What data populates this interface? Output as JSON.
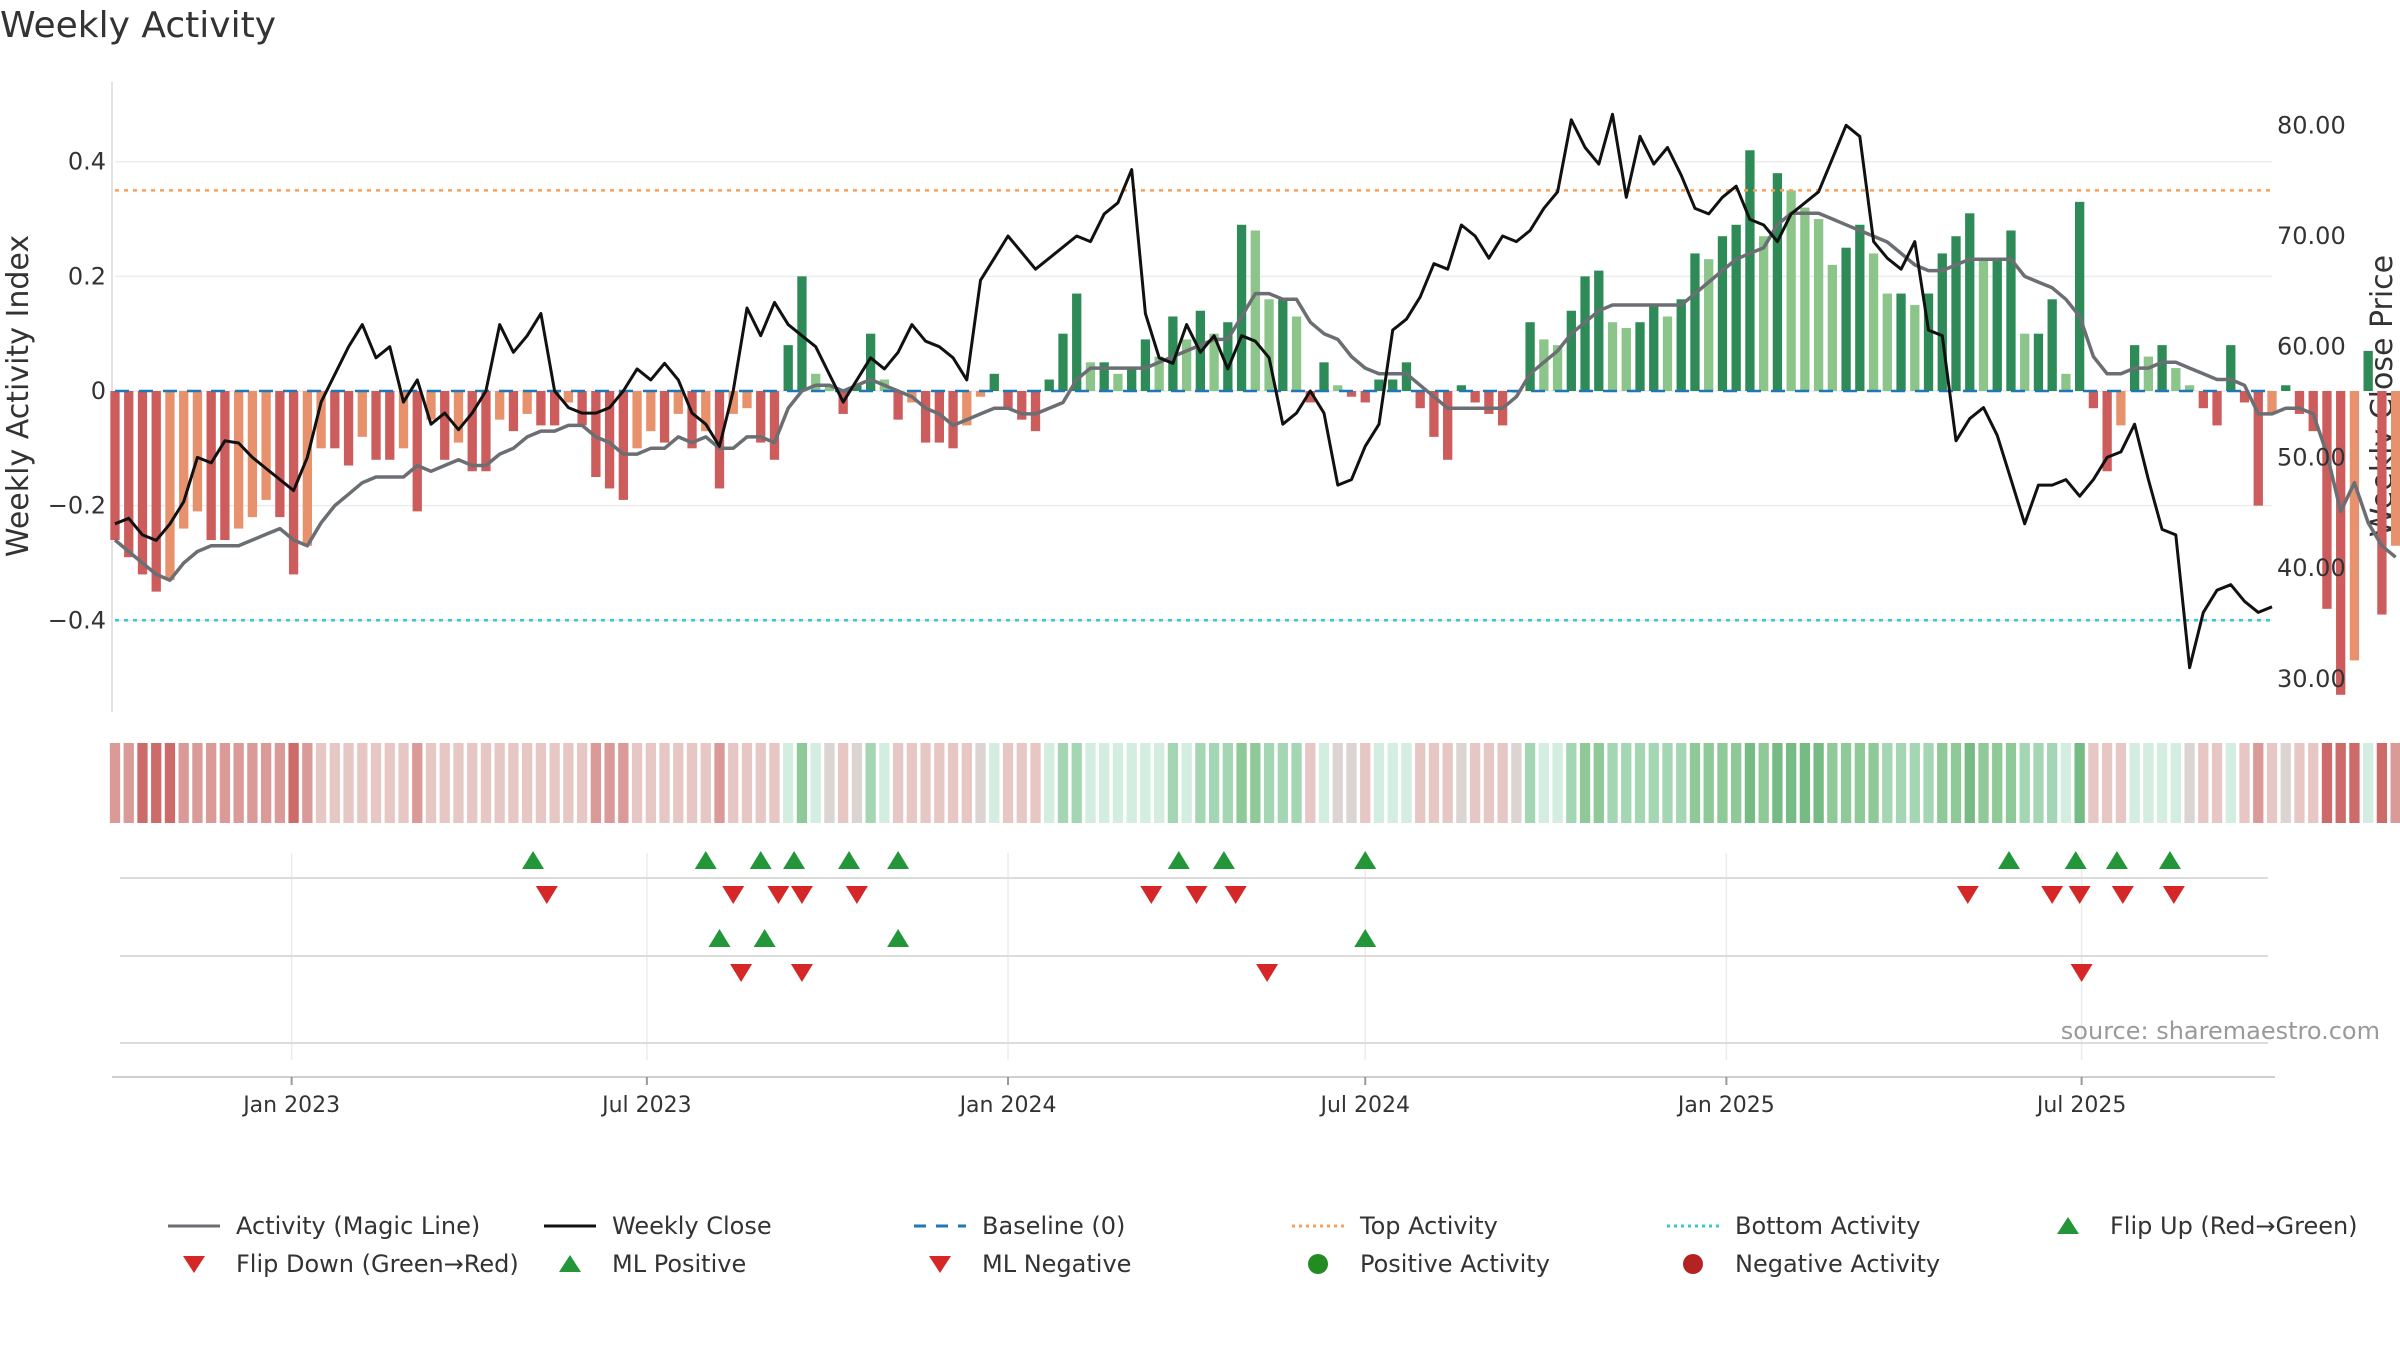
{
  "chart_data": {
    "type": "bar+line",
    "title": "Weekly Activity",
    "ylabel_left": "Weekly Activity Index",
    "ylabel_right": "Weekly Close Price",
    "source": "source: sharemaestro.com",
    "x_range": [
      "2022-10-03",
      "2025-10-06"
    ],
    "x_ticks": [
      {
        "label": "Jan 2023",
        "date": "2023-01-01"
      },
      {
        "label": "Jul 2023",
        "date": "2023-07-01"
      },
      {
        "label": "Jan 2024",
        "date": "2024-01-01"
      },
      {
        "label": "Jul 2024",
        "date": "2024-07-01"
      },
      {
        "label": "Jan 2025",
        "date": "2025-01-01"
      },
      {
        "label": "Jul 2025",
        "date": "2025-07-01"
      }
    ],
    "ylim_left": [
      -0.56,
      0.56
    ],
    "ylim_right": [
      27,
      85
    ],
    "yticks_left": [
      {
        "value": 0.4,
        "label": "0.4"
      },
      {
        "value": 0.2,
        "label": "0.2"
      },
      {
        "value": 0,
        "label": "0"
      },
      {
        "value": -0.2,
        "label": "−0.2"
      },
      {
        "value": -0.4,
        "label": "−0.4"
      }
    ],
    "yticks_right": [
      {
        "value": 80,
        "label": "80.00"
      },
      {
        "value": 70,
        "label": "70.00"
      },
      {
        "value": 60,
        "label": "60.00"
      },
      {
        "value": 50,
        "label": "50.00"
      },
      {
        "value": 40,
        "label": "40.00"
      },
      {
        "value": 30,
        "label": "30.00"
      }
    ],
    "top_activity": 0.35,
    "bottom_activity": -0.4,
    "baseline": 0,
    "start_date": "2022-10-03",
    "week_step_days": 7,
    "activity_values": [
      -0.26,
      -0.29,
      -0.32,
      -0.35,
      -0.33,
      -0.24,
      -0.21,
      -0.26,
      -0.26,
      -0.24,
      -0.22,
      -0.19,
      -0.22,
      -0.32,
      -0.27,
      -0.1,
      -0.1,
      -0.13,
      -0.08,
      -0.12,
      -0.12,
      -0.1,
      -0.21,
      -0.05,
      -0.12,
      -0.09,
      -0.14,
      -0.14,
      -0.05,
      -0.07,
      -0.04,
      -0.06,
      -0.06,
      -0.02,
      -0.06,
      -0.15,
      -0.17,
      -0.19,
      -0.1,
      -0.07,
      -0.09,
      -0.04,
      -0.1,
      -0.07,
      -0.17,
      -0.04,
      -0.03,
      -0.09,
      -0.12,
      0.08,
      0.2,
      0.03,
      0.01,
      -0.04,
      0.01,
      0.1,
      0.02,
      -0.05,
      -0.02,
      -0.09,
      -0.09,
      -0.1,
      -0.06,
      -0.01,
      0.03,
      -0.03,
      -0.05,
      -0.07,
      0.02,
      0.1,
      0.17,
      0.05,
      0.05,
      0.03,
      0.04,
      0.09,
      0.06,
      0.13,
      0.09,
      0.14,
      0.1,
      0.12,
      0.29,
      0.28,
      0.16,
      0.16,
      0.13,
      -0.02,
      0.05,
      0.01,
      -0.01,
      -0.02,
      0.02,
      0.02,
      0.05,
      -0.03,
      -0.08,
      -0.12,
      0.01,
      -0.02,
      -0.04,
      -0.06,
      0,
      0.12,
      0.09,
      0.08,
      0.14,
      0.2,
      0.21,
      0.12,
      0.11,
      0.12,
      0.15,
      0.13,
      0.16,
      0.24,
      0.23,
      0.27,
      0.29,
      0.42,
      0.27,
      0.38,
      0.35,
      0.32,
      0.3,
      0.22,
      0.25,
      0.29,
      0.24,
      0.17,
      0.17,
      0.15,
      0.17,
      0.24,
      0.27,
      0.31,
      0.23,
      0.23,
      0.28,
      0.1,
      0.1,
      0.16,
      0.03,
      0.33,
      -0.03,
      -0.14,
      -0.06,
      0.08,
      0.06,
      0.08,
      0.04,
      0.01,
      -0.03,
      -0.06,
      0.08,
      -0.02,
      -0.2,
      -0.04,
      0.01,
      -0.04,
      -0.07,
      -0.38,
      -0.53,
      -0.47,
      0.07,
      -0.39,
      -0.27
    ],
    "magic_line": [
      -0.26,
      -0.28,
      -0.3,
      -0.32,
      -0.33,
      -0.3,
      -0.28,
      -0.27,
      -0.27,
      -0.27,
      -0.26,
      -0.25,
      -0.24,
      -0.26,
      -0.27,
      -0.23,
      -0.2,
      -0.18,
      -0.16,
      -0.15,
      -0.15,
      -0.15,
      -0.13,
      -0.14,
      -0.13,
      -0.12,
      -0.13,
      -0.13,
      -0.11,
      -0.1,
      -0.08,
      -0.07,
      -0.07,
      -0.06,
      -0.06,
      -0.08,
      -0.09,
      -0.11,
      -0.11,
      -0.1,
      -0.1,
      -0.08,
      -0.09,
      -0.08,
      -0.1,
      -0.1,
      -0.08,
      -0.08,
      -0.09,
      -0.03,
      0,
      0.01,
      0.01,
      0,
      0.01,
      0.02,
      0.01,
      0,
      -0.01,
      -0.03,
      -0.04,
      -0.06,
      -0.05,
      -0.04,
      -0.03,
      -0.03,
      -0.04,
      -0.04,
      -0.03,
      -0.02,
      0.02,
      0.04,
      0.04,
      0.04,
      0.04,
      0.04,
      0.05,
      0.06,
      0.07,
      0.08,
      0.09,
      0.09,
      0.13,
      0.17,
      0.17,
      0.16,
      0.16,
      0.12,
      0.1,
      0.09,
      0.06,
      0.04,
      0.03,
      0.03,
      0.03,
      0.01,
      -0.01,
      -0.03,
      -0.03,
      -0.03,
      -0.03,
      -0.03,
      -0.01,
      0.03,
      0.05,
      0.07,
      0.1,
      0.12,
      0.14,
      0.15,
      0.15,
      0.15,
      0.15,
      0.15,
      0.15,
      0.17,
      0.19,
      0.21,
      0.23,
      0.24,
      0.25,
      0.29,
      0.31,
      0.31,
      0.31,
      0.3,
      0.29,
      0.28,
      0.27,
      0.26,
      0.24,
      0.22,
      0.21,
      0.21,
      0.22,
      0.23,
      0.23,
      0.23,
      0.23,
      0.2,
      0.19,
      0.18,
      0.16,
      0.13,
      0.06,
      0.03,
      0.03,
      0.04,
      0.04,
      0.05,
      0.05,
      0.04,
      0.03,
      0.02,
      0.02,
      0.01,
      -0.04,
      -0.04,
      -0.03,
      -0.03,
      -0.04,
      -0.11,
      -0.21,
      -0.16,
      -0.23,
      -0.27,
      -0.29
    ],
    "weekly_close": [
      44,
      44.5,
      43,
      42.5,
      44,
      46,
      50,
      49.5,
      51.5,
      51.3,
      50,
      49,
      48,
      47,
      50,
      55,
      57.5,
      60,
      62,
      59,
      60,
      55,
      57,
      53,
      54,
      52.5,
      54,
      56,
      62,
      59.5,
      61,
      63,
      56,
      54.5,
      54,
      54,
      54.5,
      56,
      58,
      57,
      58.5,
      57,
      54,
      53,
      51,
      56,
      63.5,
      61,
      64,
      62,
      61,
      60,
      57.5,
      55,
      57,
      59,
      58,
      59.5,
      62,
      60.5,
      60,
      59,
      57,
      66,
      68,
      70,
      68.5,
      67,
      68,
      69,
      70,
      69.5,
      72,
      73,
      76,
      63,
      59,
      58.5,
      62,
      59.5,
      61,
      58,
      61,
      60.5,
      59,
      53,
      54,
      56,
      54,
      47.5,
      48,
      51,
      53,
      61.5,
      62.5,
      64.5,
      67.5,
      67,
      71,
      70,
      68,
      70,
      69.5,
      70.5,
      72.5,
      74,
      80.5,
      78,
      76.5,
      81,
      73.5,
      79,
      76.5,
      78,
      75.5,
      72.5,
      72,
      73.5,
      74.5,
      71.5,
      71,
      69.5,
      72,
      73,
      74,
      77,
      80,
      79,
      69.5,
      68,
      67,
      69.5,
      61.5,
      61,
      51.5,
      53.5,
      54.5,
      52,
      48,
      44,
      47.5,
      47.5,
      48,
      46.5,
      48,
      50,
      50.5,
      53,
      48,
      43.5,
      43,
      31,
      36,
      38,
      38.5,
      37,
      36,
      36.5
    ],
    "cell_colors": [
      "#d99a98",
      "#e7c7c4",
      "#dcd4d0",
      "#d3ede0",
      "#a4d6b4",
      "#8ec997",
      "#76ba84",
      "#cd6b6a",
      "#57a56a"
    ],
    "signals": {
      "flip_up": [
        "2023-05-04",
        "2023-07-31",
        "2023-08-28",
        "2023-09-14",
        "2023-10-12",
        "2023-11-06",
        "2024-03-28",
        "2024-04-20",
        "2024-07-01",
        "2025-05-25",
        "2025-06-28",
        "2025-07-19",
        "2025-08-15"
      ],
      "flip_down": [
        "2023-05-11",
        "2023-08-14",
        "2023-09-06",
        "2023-09-18",
        "2023-10-16",
        "2024-03-14",
        "2024-04-06",
        "2024-04-26",
        "2025-05-04",
        "2025-06-16",
        "2025-06-30",
        "2025-07-22",
        "2025-08-17"
      ],
      "ml_positive": [
        "2023-08-07",
        "2023-08-30",
        "2023-11-06",
        "2024-07-01"
      ],
      "ml_negative": [
        "2023-08-18",
        "2023-09-18",
        "2024-05-12",
        "2025-07-01"
      ]
    },
    "legend": [
      {
        "label": "Activity (Magic Line)",
        "kind": "line",
        "color": "#6b6f73",
        "dash": "none"
      },
      {
        "label": "Weekly Close",
        "kind": "line",
        "color": "#111111",
        "dash": "none"
      },
      {
        "label": "Baseline (0)",
        "kind": "line",
        "color": "#1f77b4",
        "dash": "dashed"
      },
      {
        "label": "Top Activity",
        "kind": "line",
        "color": "#f5a15c",
        "dash": "dotted"
      },
      {
        "label": "Bottom Activity",
        "kind": "line",
        "color": "#38c7cf",
        "dash": "dotted"
      },
      {
        "label": "Flip Up (Red→Green)",
        "kind": "triangle-up",
        "color": "#23963a"
      },
      {
        "label": "Flip Down (Green→Red)",
        "kind": "triangle-down",
        "color": "#d62728"
      },
      {
        "label": "ML Positive",
        "kind": "triangle-up",
        "color": "#23963a"
      },
      {
        "label": "ML Negative",
        "kind": "triangle-down",
        "color": "#d62728"
      },
      {
        "label": "Positive Activity",
        "kind": "circle",
        "color": "#238b22"
      },
      {
        "label": "Negative Activity",
        "kind": "circle",
        "color": "#b52222"
      }
    ],
    "colors": {
      "pos_strong": "#2e8b57",
      "pos_light": "#8cc58a",
      "neg_strong": "#cd5c5c",
      "neg_light": "#e8926d",
      "magic": "#6b6f73",
      "close": "#111111",
      "baseline": "#1f77b4",
      "top": "#f5a15c",
      "bottom": "#38c7cf",
      "up": "#23963a",
      "down": "#d62728"
    }
  }
}
